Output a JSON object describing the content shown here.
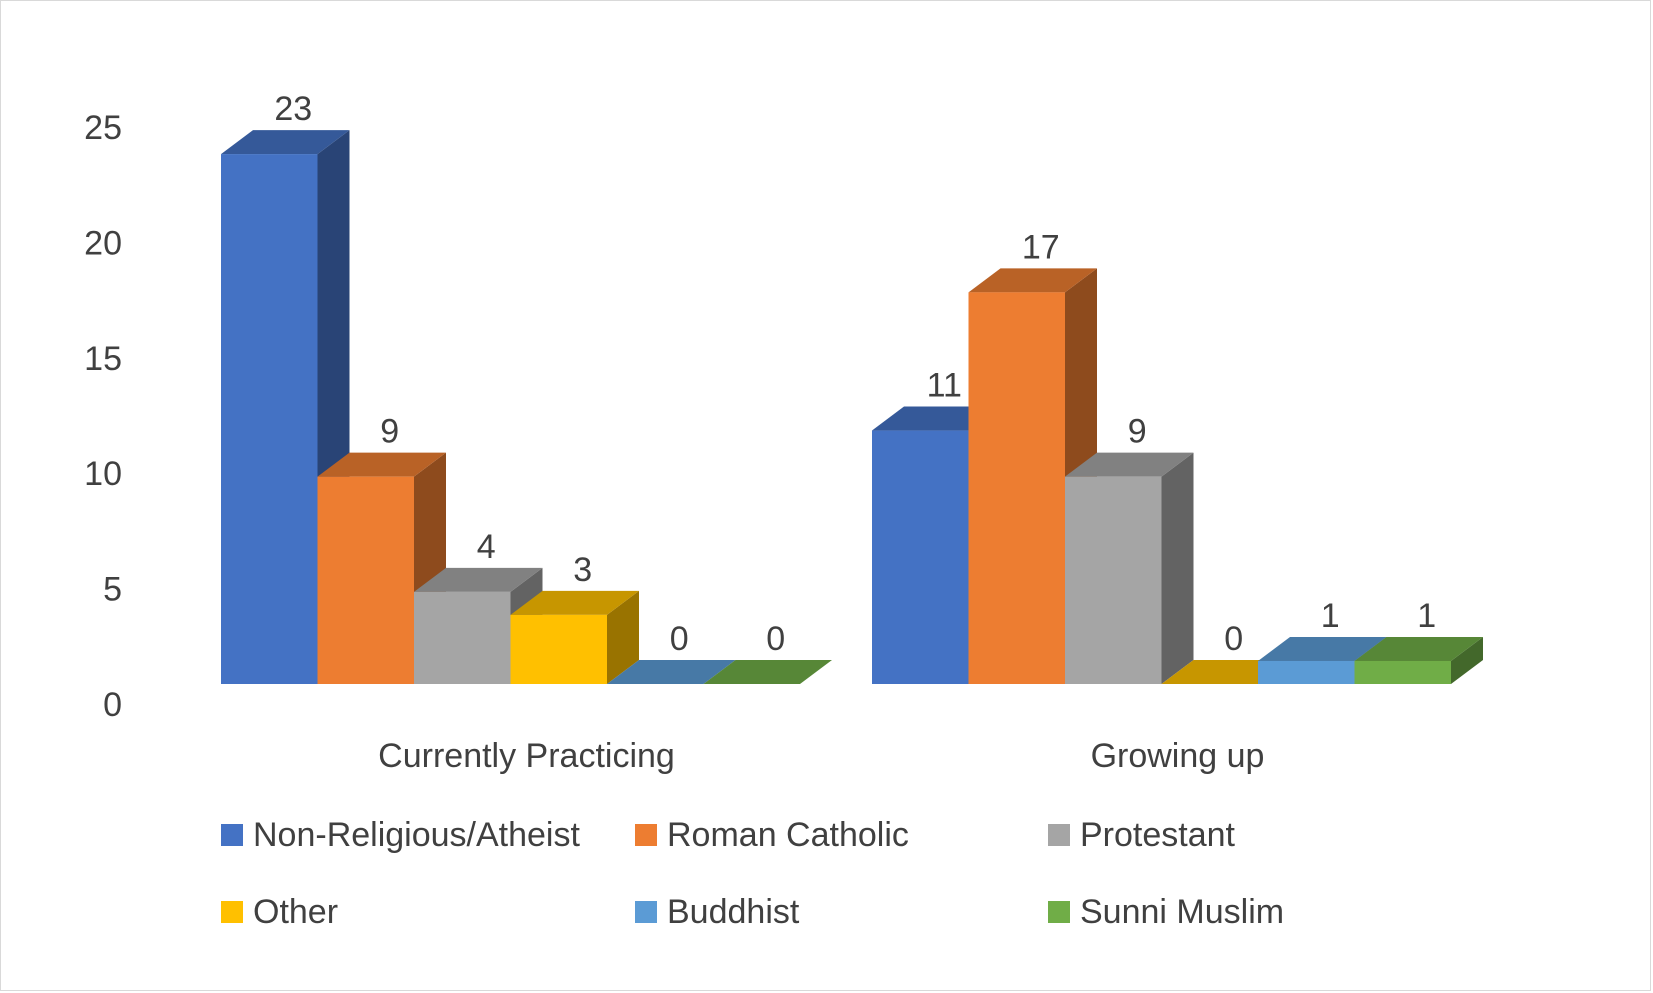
{
  "chart_data": {
    "type": "bar",
    "style": "3d-clustered-column",
    "categories": [
      "Currently Practicing",
      "Growing up"
    ],
    "series": [
      {
        "name": "Non-Religious/Atheist",
        "values": [
          23,
          11
        ],
        "color": "#4472c4"
      },
      {
        "name": "Roman Catholic",
        "values": [
          9,
          17
        ],
        "color": "#ed7d31"
      },
      {
        "name": "Protestant",
        "values": [
          4,
          9
        ],
        "color": "#a5a5a5"
      },
      {
        "name": "Other",
        "values": [
          3,
          0
        ],
        "color": "#ffc000"
      },
      {
        "name": "Buddhist",
        "values": [
          0,
          1
        ],
        "color": "#5b9bd5"
      },
      {
        "name": "Sunni Muslim",
        "values": [
          0,
          1
        ],
        "color": "#70ad47"
      }
    ],
    "ylim": [
      0,
      25
    ],
    "yticks": [
      0,
      5,
      10,
      15,
      20,
      25
    ],
    "title": "",
    "xlabel": "",
    "ylabel": "",
    "grid": false,
    "legend_position": "bottom",
    "data_labels": true
  }
}
